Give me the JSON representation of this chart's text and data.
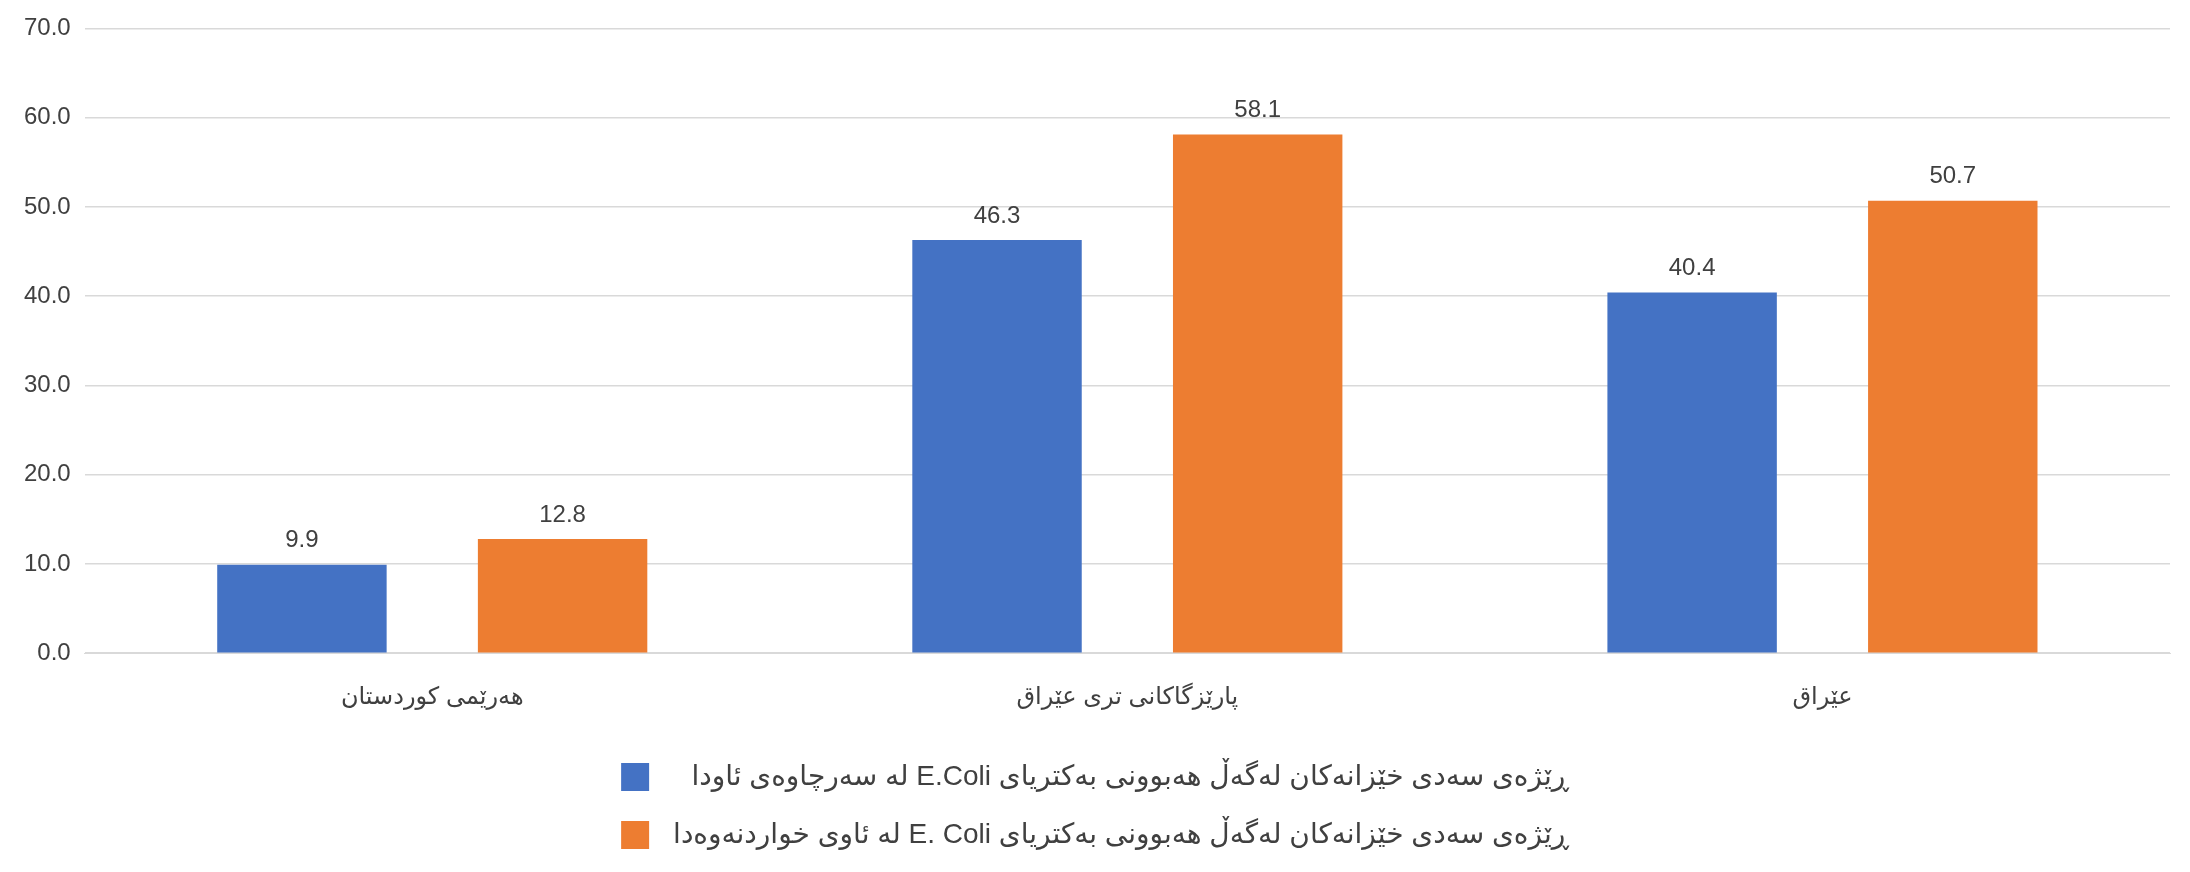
{
  "chart_data": {
    "type": "bar",
    "categories": [
      "هەرێمی کوردستان",
      "پارێزگاکانی تری عێراق",
      "عێراق"
    ],
    "series": [
      {
        "name": "ڕێژەی سەدی خێزانەکان لەگەڵ هەبوونی بەکتریای E.Coli لە سەرچاوەی ئاودا",
        "color": "#4472c4",
        "values": [
          9.9,
          46.3,
          40.4
        ]
      },
      {
        "name": "ڕێژەی سەدی خێزانەکان لەگەڵ هەبوونی بەکتریای E. Coli لە ئاوی خواردنەوەدا",
        "color": "#ed7d31",
        "values": [
          12.8,
          58.1,
          50.7
        ]
      }
    ],
    "ylim": [
      0,
      70
    ],
    "yticks": [
      {
        "value": 0,
        "label": "0.0"
      },
      {
        "value": 10,
        "label": "10.0"
      },
      {
        "value": 20,
        "label": "20.0"
      },
      {
        "value": 30,
        "label": "30.0"
      },
      {
        "value": 40,
        "label": "40.0"
      },
      {
        "value": 50,
        "label": "50.0"
      },
      {
        "value": 60,
        "label": "60.0"
      },
      {
        "value": 70,
        "label": "70.0"
      }
    ],
    "grid": "y",
    "legend": "bottom",
    "data_labels": true
  }
}
